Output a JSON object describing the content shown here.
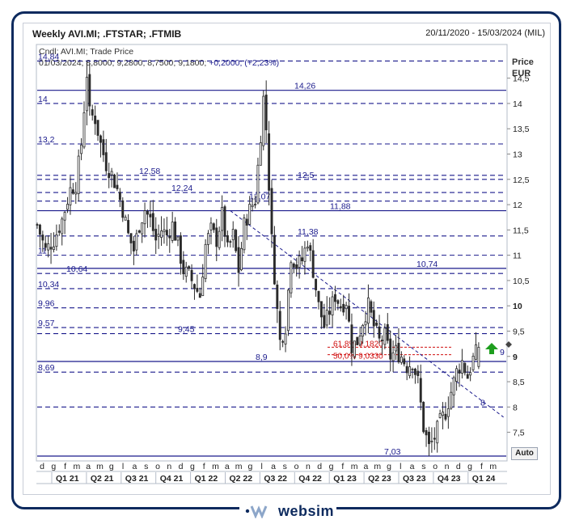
{
  "header": {
    "title": "Weekly AVI.MI; .FTSTAR; .FTMIB",
    "date_range": "20/11/2020 - 15/03/2024 (MIL)"
  },
  "info": {
    "line1": "Cndl; AVI.MI; Trade Price",
    "line2_prefix": "01/03/2024; 8,8000; 9,2800; 8,7500; 9,1800;",
    "line2_change": " +0,2000; (+2,23%)"
  },
  "axis": {
    "price_title": "Price",
    "currency": "EUR",
    "auto_label": "Auto",
    "y_ticks": [
      "14,5",
      "14",
      "13,5",
      "13",
      "12,5",
      "12",
      "11,5",
      "11",
      "10,5",
      "10",
      "9,5",
      "9",
      "8,5",
      "8",
      "7,5"
    ],
    "month_ticks": [
      "d",
      "g",
      "f",
      "m",
      "a",
      "m",
      "g",
      "l",
      "a",
      "s",
      "o",
      "n",
      "d",
      "g",
      "f",
      "m",
      "a",
      "m",
      "g",
      "l",
      "a",
      "s",
      "o",
      "n",
      "d",
      "g",
      "f",
      "m",
      "a",
      "m",
      "g",
      "l",
      "a",
      "s",
      "o",
      "n",
      "d",
      "g",
      "f",
      "m"
    ],
    "quarters": [
      "Q1 21",
      "Q2 21",
      "Q3 21",
      "Q4 21",
      "Q1 22",
      "Q2 22",
      "Q3 22",
      "Q4 22",
      "Q1 23",
      "Q2 23",
      "Q3 23",
      "Q4 23",
      "Q1 24"
    ]
  },
  "levels_left": [
    "14,84",
    "14",
    "13,2",
    "11",
    "10,34",
    "9,96",
    "9,57",
    "8,69"
  ],
  "levels_inline": [
    "14,26",
    "12,58",
    "12,5",
    "12,24",
    "12,07",
    "11,88",
    "11,38",
    "10,74",
    "10,64",
    "9,45",
    "8,9",
    "7,03",
    "9",
    "8"
  ],
  "fib": [
    "61,8% 9,1820",
    "50,0% 9,0330"
  ],
  "brand": {
    "name": "websim"
  },
  "colors": {
    "level_line": "#1a1a8c",
    "candle": "#2b2b2b",
    "fib": "#d01010",
    "arrow": "#1e9e1e"
  },
  "chart_data": {
    "type": "candlestick",
    "title": "Weekly AVI.MI; .FTSTAR; .FTMIB",
    "x_range": [
      "20/11/2020",
      "15/03/2024"
    ],
    "ylabel": "Price EUR",
    "ylim": [
      6.95,
      15.15
    ],
    "last_candle": {
      "date": "01/03/2024",
      "open": 8.8,
      "high": 9.28,
      "low": 8.75,
      "close": 9.18,
      "change": 0.2,
      "change_pct": 2.23
    },
    "horizontal_levels": [
      {
        "value": 14.84,
        "style": "dashed"
      },
      {
        "value": 14.26,
        "style": "solid"
      },
      {
        "value": 14,
        "style": "dashed"
      },
      {
        "value": 13.2,
        "style": "dashed"
      },
      {
        "value": 12.58,
        "style": "dashed"
      },
      {
        "value": 12.5,
        "style": "dashed"
      },
      {
        "value": 12.24,
        "style": "dashed"
      },
      {
        "value": 12.07,
        "style": "dashed"
      },
      {
        "value": 11.88,
        "style": "solid"
      },
      {
        "value": 11.38,
        "style": "dashed"
      },
      {
        "value": 11,
        "style": "dashed"
      },
      {
        "value": 10.74,
        "style": "solid"
      },
      {
        "value": 10.64,
        "style": "dashed"
      },
      {
        "value": 10.34,
        "style": "dashed"
      },
      {
        "value": 9.96,
        "style": "dashed"
      },
      {
        "value": 9.57,
        "style": "dashed"
      },
      {
        "value": 9.45,
        "style": "dashed"
      },
      {
        "value": 8.9,
        "style": "solid"
      },
      {
        "value": 8.69,
        "style": "dashed"
      },
      {
        "value": 8,
        "style": "dashed"
      },
      {
        "value": 7.03,
        "style": "solid"
      }
    ],
    "fibonacci": [
      {
        "label": "61,8%",
        "value": 9.182
      },
      {
        "label": "50,0%",
        "value": 9.033
      }
    ],
    "trendline": {
      "from": {
        "week": 70,
        "price": 11.88
      },
      "to": {
        "week": 169,
        "price": 7.8
      }
    },
    "close_path": [
      [
        0,
        11.6
      ],
      [
        3,
        11.1
      ],
      [
        6,
        11.3
      ],
      [
        9,
        11.7
      ],
      [
        12,
        12.3
      ],
      [
        14,
        12.4
      ],
      [
        16,
        13.2
      ],
      [
        17,
        13.9
      ],
      [
        18,
        14.6
      ],
      [
        19,
        13.8
      ],
      [
        21,
        13.7
      ],
      [
        23,
        13.2
      ],
      [
        25,
        12.8
      ],
      [
        27,
        12.6
      ],
      [
        29,
        12.3
      ],
      [
        31,
        11.9
      ],
      [
        33,
        11.4
      ],
      [
        35,
        11.1
      ],
      [
        37,
        11.6
      ],
      [
        39,
        11.9
      ],
      [
        41,
        11.7
      ],
      [
        43,
        11.3
      ],
      [
        45,
        11.5
      ],
      [
        47,
        11.4
      ],
      [
        49,
        11.6
      ],
      [
        51,
        11.2
      ],
      [
        53,
        10.7
      ],
      [
        55,
        10.6
      ],
      [
        57,
        10.4
      ],
      [
        59,
        10.2
      ],
      [
        61,
        11.2
      ],
      [
        63,
        11.5
      ],
      [
        65,
        11.3
      ],
      [
        67,
        11.8
      ],
      [
        69,
        11.1
      ],
      [
        71,
        11.4
      ],
      [
        73,
        10.7
      ],
      [
        75,
        11.6
      ],
      [
        77,
        11.9
      ],
      [
        79,
        12.1
      ],
      [
        81,
        13.4
      ],
      [
        82,
        14.1
      ],
      [
        83,
        13.5
      ],
      [
        85,
        11.3
      ],
      [
        87,
        9.9
      ],
      [
        88,
        9.3
      ],
      [
        90,
        9.6
      ],
      [
        92,
        11.0
      ],
      [
        94,
        10.8
      ],
      [
        96,
        10.9
      ],
      [
        98,
        11.3
      ],
      [
        100,
        10.7
      ],
      [
        102,
        10.0
      ],
      [
        104,
        9.6
      ],
      [
        106,
        9.9
      ],
      [
        108,
        10.2
      ],
      [
        110,
        10.0
      ],
      [
        112,
        10.1
      ],
      [
        114,
        9.2
      ],
      [
        116,
        9.3
      ],
      [
        118,
        9.7
      ],
      [
        120,
        10.0
      ],
      [
        122,
        9.6
      ],
      [
        124,
        9.3
      ],
      [
        126,
        9.4
      ],
      [
        128,
        9.0
      ],
      [
        130,
        9.1
      ],
      [
        132,
        9.0
      ],
      [
        134,
        8.8
      ],
      [
        136,
        8.9
      ],
      [
        138,
        8.5
      ],
      [
        140,
        7.6
      ],
      [
        142,
        7.2
      ],
      [
        144,
        7.4
      ],
      [
        146,
        7.7
      ],
      [
        148,
        7.9
      ],
      [
        150,
        8.3
      ],
      [
        152,
        8.7
      ],
      [
        154,
        8.9
      ],
      [
        156,
        8.6
      ],
      [
        158,
        8.95
      ],
      [
        160,
        9.18
      ]
    ]
  }
}
